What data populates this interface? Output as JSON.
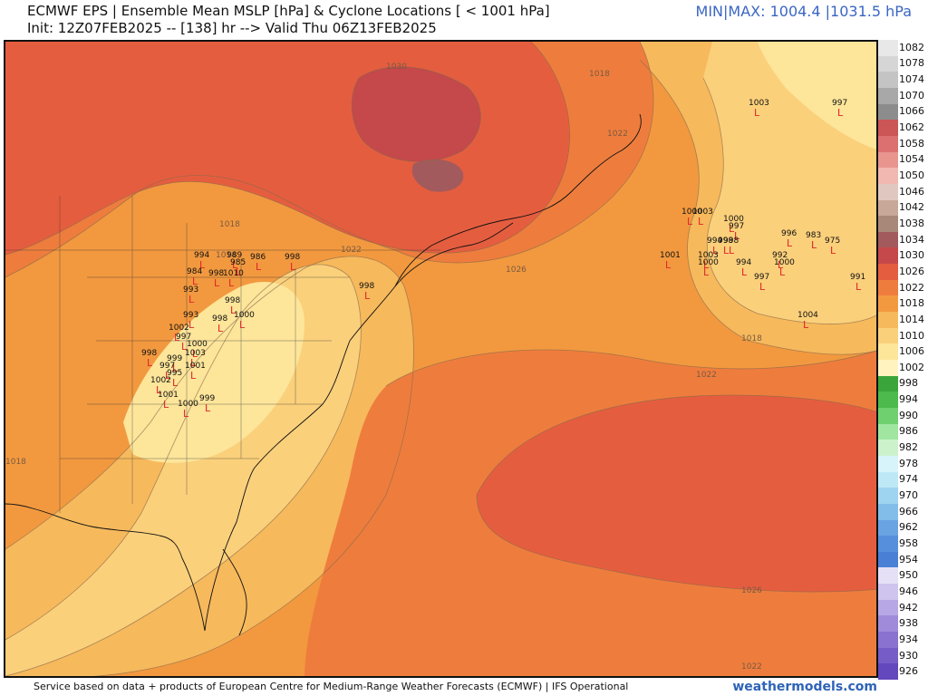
{
  "header": {
    "title_line1": "ECMWF EPS | Ensemble Mean MSLP [hPa] & Cyclone Locations [ < 1001 hPa]",
    "title_line2": "Init: 12Z07FEB2025 -- [138] hr --> Valid Thu 06Z13FEB2025",
    "minmax": "MIN|MAX: 1004.4 |1031.5 hPa"
  },
  "footer": {
    "credit": "Service based on data + products of European Centre for Medium-Range Weather Forecasts (ECMWF) | IFS Operational",
    "site": "weathermodels.com"
  },
  "colors": {
    "p1006": "#fde59a",
    "p1010": "#fbd07b",
    "p1014": "#f6b95c",
    "p1018": "#f2993f",
    "p1022": "#ee7d3d",
    "p1026": "#e55d3f",
    "p1030": "#c5484a",
    "p1034": "#a35a5c",
    "cyclone": "#e0252a"
  },
  "contour_labels": [
    "1030",
    "1018",
    "1022",
    "1018",
    "1014",
    "1022",
    "1026",
    "1018",
    "1022",
    "1026",
    "1022",
    "1018"
  ],
  "cyclones": [
    {
      "value": "1003"
    },
    {
      "value": "997"
    },
    {
      "value": "1000"
    },
    {
      "value": "1003"
    },
    {
      "value": "1000"
    },
    {
      "value": "997"
    },
    {
      "value": "994"
    },
    {
      "value": "996"
    },
    {
      "value": "983"
    },
    {
      "value": "975"
    },
    {
      "value": "1001"
    },
    {
      "value": "1003"
    },
    {
      "value": "1000"
    },
    {
      "value": "998"
    },
    {
      "value": "998"
    },
    {
      "value": "994"
    },
    {
      "value": "997"
    },
    {
      "value": "992"
    },
    {
      "value": "1000"
    },
    {
      "value": "991"
    },
    {
      "value": "1004"
    },
    {
      "value": "994"
    },
    {
      "value": "989"
    },
    {
      "value": "985"
    },
    {
      "value": "986"
    },
    {
      "value": "998"
    },
    {
      "value": "984"
    },
    {
      "value": "993"
    },
    {
      "value": "998"
    },
    {
      "value": "1010"
    },
    {
      "value": "998"
    },
    {
      "value": "993"
    },
    {
      "value": "1000"
    },
    {
      "value": "998"
    },
    {
      "value": "1002"
    },
    {
      "value": "997"
    },
    {
      "value": "1000"
    },
    {
      "value": "1003"
    },
    {
      "value": "998"
    },
    {
      "value": "999"
    },
    {
      "value": "997"
    },
    {
      "value": "995"
    },
    {
      "value": "1001"
    },
    {
      "value": "1002"
    },
    {
      "value": "1001"
    },
    {
      "value": "1000"
    },
    {
      "value": "999"
    },
    {
      "value": "998"
    }
  ],
  "scale": [
    {
      "label": "1082",
      "color": "#e8e8e8"
    },
    {
      "label": "1078",
      "color": "#d6d6d6"
    },
    {
      "label": "1074",
      "color": "#c4c4c4"
    },
    {
      "label": "1070",
      "color": "#a8a8a8"
    },
    {
      "label": "1066",
      "color": "#8c8c8c"
    },
    {
      "label": "1062",
      "color": "#cc5555"
    },
    {
      "label": "1058",
      "color": "#dc7070"
    },
    {
      "label": "1054",
      "color": "#e8958e"
    },
    {
      "label": "1050",
      "color": "#f0b8b0"
    },
    {
      "label": "1046",
      "color": "#e0c8c0"
    },
    {
      "label": "1042",
      "color": "#c8a898"
    },
    {
      "label": "1038",
      "color": "#a88878"
    },
    {
      "label": "1034",
      "color": "#a35a5c"
    },
    {
      "label": "1030",
      "color": "#c5484a"
    },
    {
      "label": "1026",
      "color": "#e55d3f"
    },
    {
      "label": "1022",
      "color": "#ee7d3d"
    },
    {
      "label": "1018",
      "color": "#f2993f"
    },
    {
      "label": "1014",
      "color": "#f6b95c"
    },
    {
      "label": "1010",
      "color": "#fbd07b"
    },
    {
      "label": "1006",
      "color": "#fde59a"
    },
    {
      "label": "1002",
      "color": "#fff4c0"
    },
    {
      "label": "998",
      "color": "#3aa53a"
    },
    {
      "label": "994",
      "color": "#4cba4c"
    },
    {
      "label": "990",
      "color": "#6fd06f"
    },
    {
      "label": "986",
      "color": "#a0e6a0"
    },
    {
      "label": "982",
      "color": "#ccf2cc"
    },
    {
      "label": "978",
      "color": "#d8f4fb"
    },
    {
      "label": "974",
      "color": "#bfe8f6"
    },
    {
      "label": "970",
      "color": "#9fd4f0"
    },
    {
      "label": "966",
      "color": "#82bdea"
    },
    {
      "label": "962",
      "color": "#6aa3e2"
    },
    {
      "label": "958",
      "color": "#5690dc"
    },
    {
      "label": "954",
      "color": "#4a7fd6"
    },
    {
      "label": "950",
      "color": "#e6e0f6"
    },
    {
      "label": "946",
      "color": "#cfc4ee"
    },
    {
      "label": "942",
      "color": "#b7a7e4"
    },
    {
      "label": "938",
      "color": "#9f8bda"
    },
    {
      "label": "934",
      "color": "#8a72d0"
    },
    {
      "label": "930",
      "color": "#765cc6"
    },
    {
      "label": "926",
      "color": "#6347bc"
    }
  ]
}
